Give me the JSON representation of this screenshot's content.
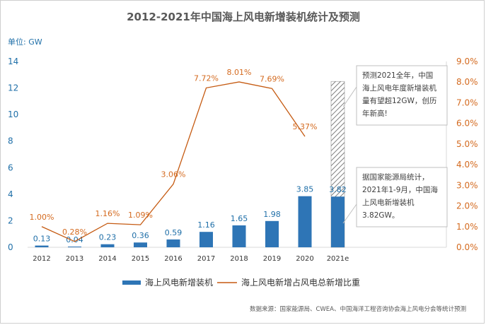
{
  "title": "2012-2021年中国海上风电新增装机统计及预测",
  "unit_label": "单位: GW",
  "source": "数据来源：国家能源局、CWEA、中国海洋工程咨询协会海上风电分会等统计预测",
  "colors": {
    "bar": "#2e75b6",
    "line": "#c55a11",
    "left_axis_text": "#1f6fa8",
    "right_axis_text": "#d46a1f",
    "forecast_hatch": "#7f7f7f"
  },
  "chart_data": {
    "type": "bar",
    "categories": [
      "2012",
      "2013",
      "2014",
      "2015",
      "2016",
      "2017",
      "2018",
      "2019",
      "2020",
      "2021e"
    ],
    "series": [
      {
        "name": "海上风电新增装机",
        "type": "bar",
        "axis": "left",
        "values": [
          0.13,
          0.04,
          0.23,
          0.36,
          0.59,
          1.16,
          1.65,
          1.98,
          3.85,
          3.82
        ],
        "labels": [
          "0.13",
          "0.04",
          "0.23",
          "0.36",
          "0.59",
          "1.16",
          "1.65",
          "1.98",
          "3.85",
          "3.82"
        ]
      },
      {
        "name": "海上风电新增占风电总新增比重",
        "type": "line",
        "axis": "right",
        "values": [
          1.0,
          0.28,
          1.16,
          1.09,
          3.06,
          7.72,
          8.01,
          7.69,
          5.37,
          null
        ],
        "labels": [
          "1.00%",
          "0.28%",
          "1.16%",
          "1.09%",
          "3.06%",
          "7.72%",
          "8.01%",
          "7.69%",
          "5.37%",
          ""
        ]
      }
    ],
    "forecast": {
      "category": "2021e",
      "value": 12.5,
      "style": "hatched"
    },
    "left_axis": {
      "min": 0,
      "max": 14,
      "step": 2,
      "ticks": [
        "0",
        "2",
        "4",
        "6",
        "8",
        "10",
        "12",
        "14"
      ]
    },
    "right_axis": {
      "min": 0,
      "max": 9,
      "step": 1,
      "ticks": [
        "0.0%",
        "1.0%",
        "2.0%",
        "3.0%",
        "4.0%",
        "5.0%",
        "6.0%",
        "7.0%",
        "8.0%",
        "9.0%"
      ]
    },
    "grid": false,
    "legend_position": "bottom",
    "annotations": [
      {
        "target": "forecast",
        "lines": [
          "预测2021全年，中国",
          "海上风电年度新增装机",
          "量有望超12GW，创历",
          "年新高!"
        ]
      },
      {
        "target": "2021e",
        "lines": [
          "据国家能源局统计，",
          "2021年1-9月，中国海",
          "上风电新增装机",
          "3.82GW。"
        ]
      }
    ]
  }
}
